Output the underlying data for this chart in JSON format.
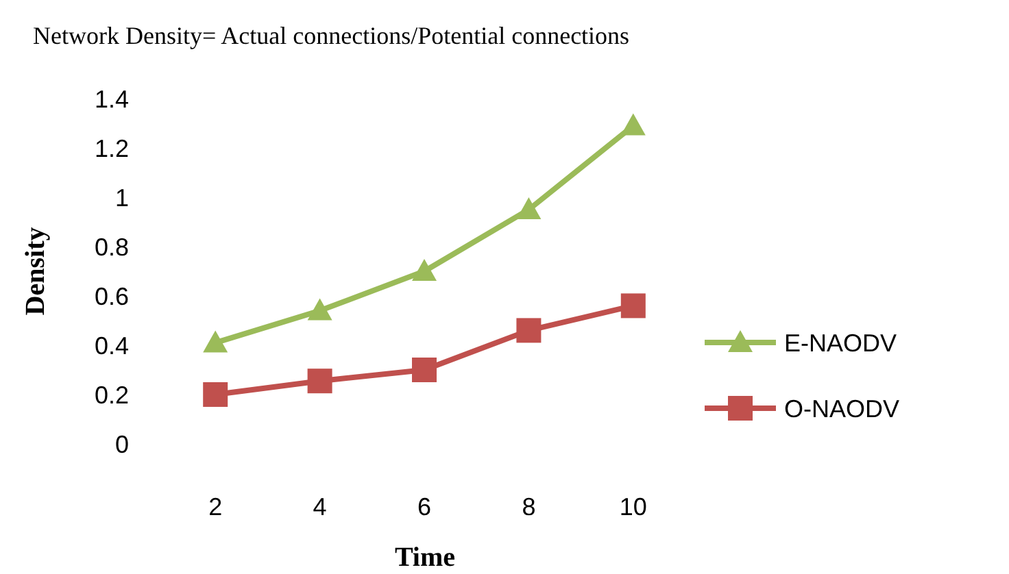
{
  "chart_data": {
    "type": "line",
    "title": "Network Density= Actual connections/Potential connections",
    "xlabel": "Time",
    "ylabel": "Density",
    "categories": [
      "2",
      "4",
      "6",
      "8",
      "10"
    ],
    "series": [
      {
        "name": "E-NAODV",
        "color": "#9bbb59",
        "values": [
          0.41,
          0.54,
          0.7,
          0.95,
          1.29
        ],
        "marker": "triangle"
      },
      {
        "name": "O-NAODV",
        "color": "#c0504d",
        "values": [
          0.2,
          0.255,
          0.3,
          0.46,
          0.56
        ],
        "marker": "square"
      }
    ],
    "ylim": [
      0,
      1.4
    ],
    "yticks": [
      0,
      {
        "value": 0.2,
        "label": "0.2"
      },
      {
        "value": 0.4,
        "label": "0.4"
      },
      {
        "value": 0.6,
        "label": "0.6"
      },
      {
        "value": 0.8,
        "label": "0.8"
      },
      1,
      {
        "value": 1.2,
        "label": "1.2"
      },
      {
        "value": 1.4,
        "label": "1.4"
      }
    ],
    "grid": false,
    "legend": "right",
    "line_style": "solid"
  }
}
